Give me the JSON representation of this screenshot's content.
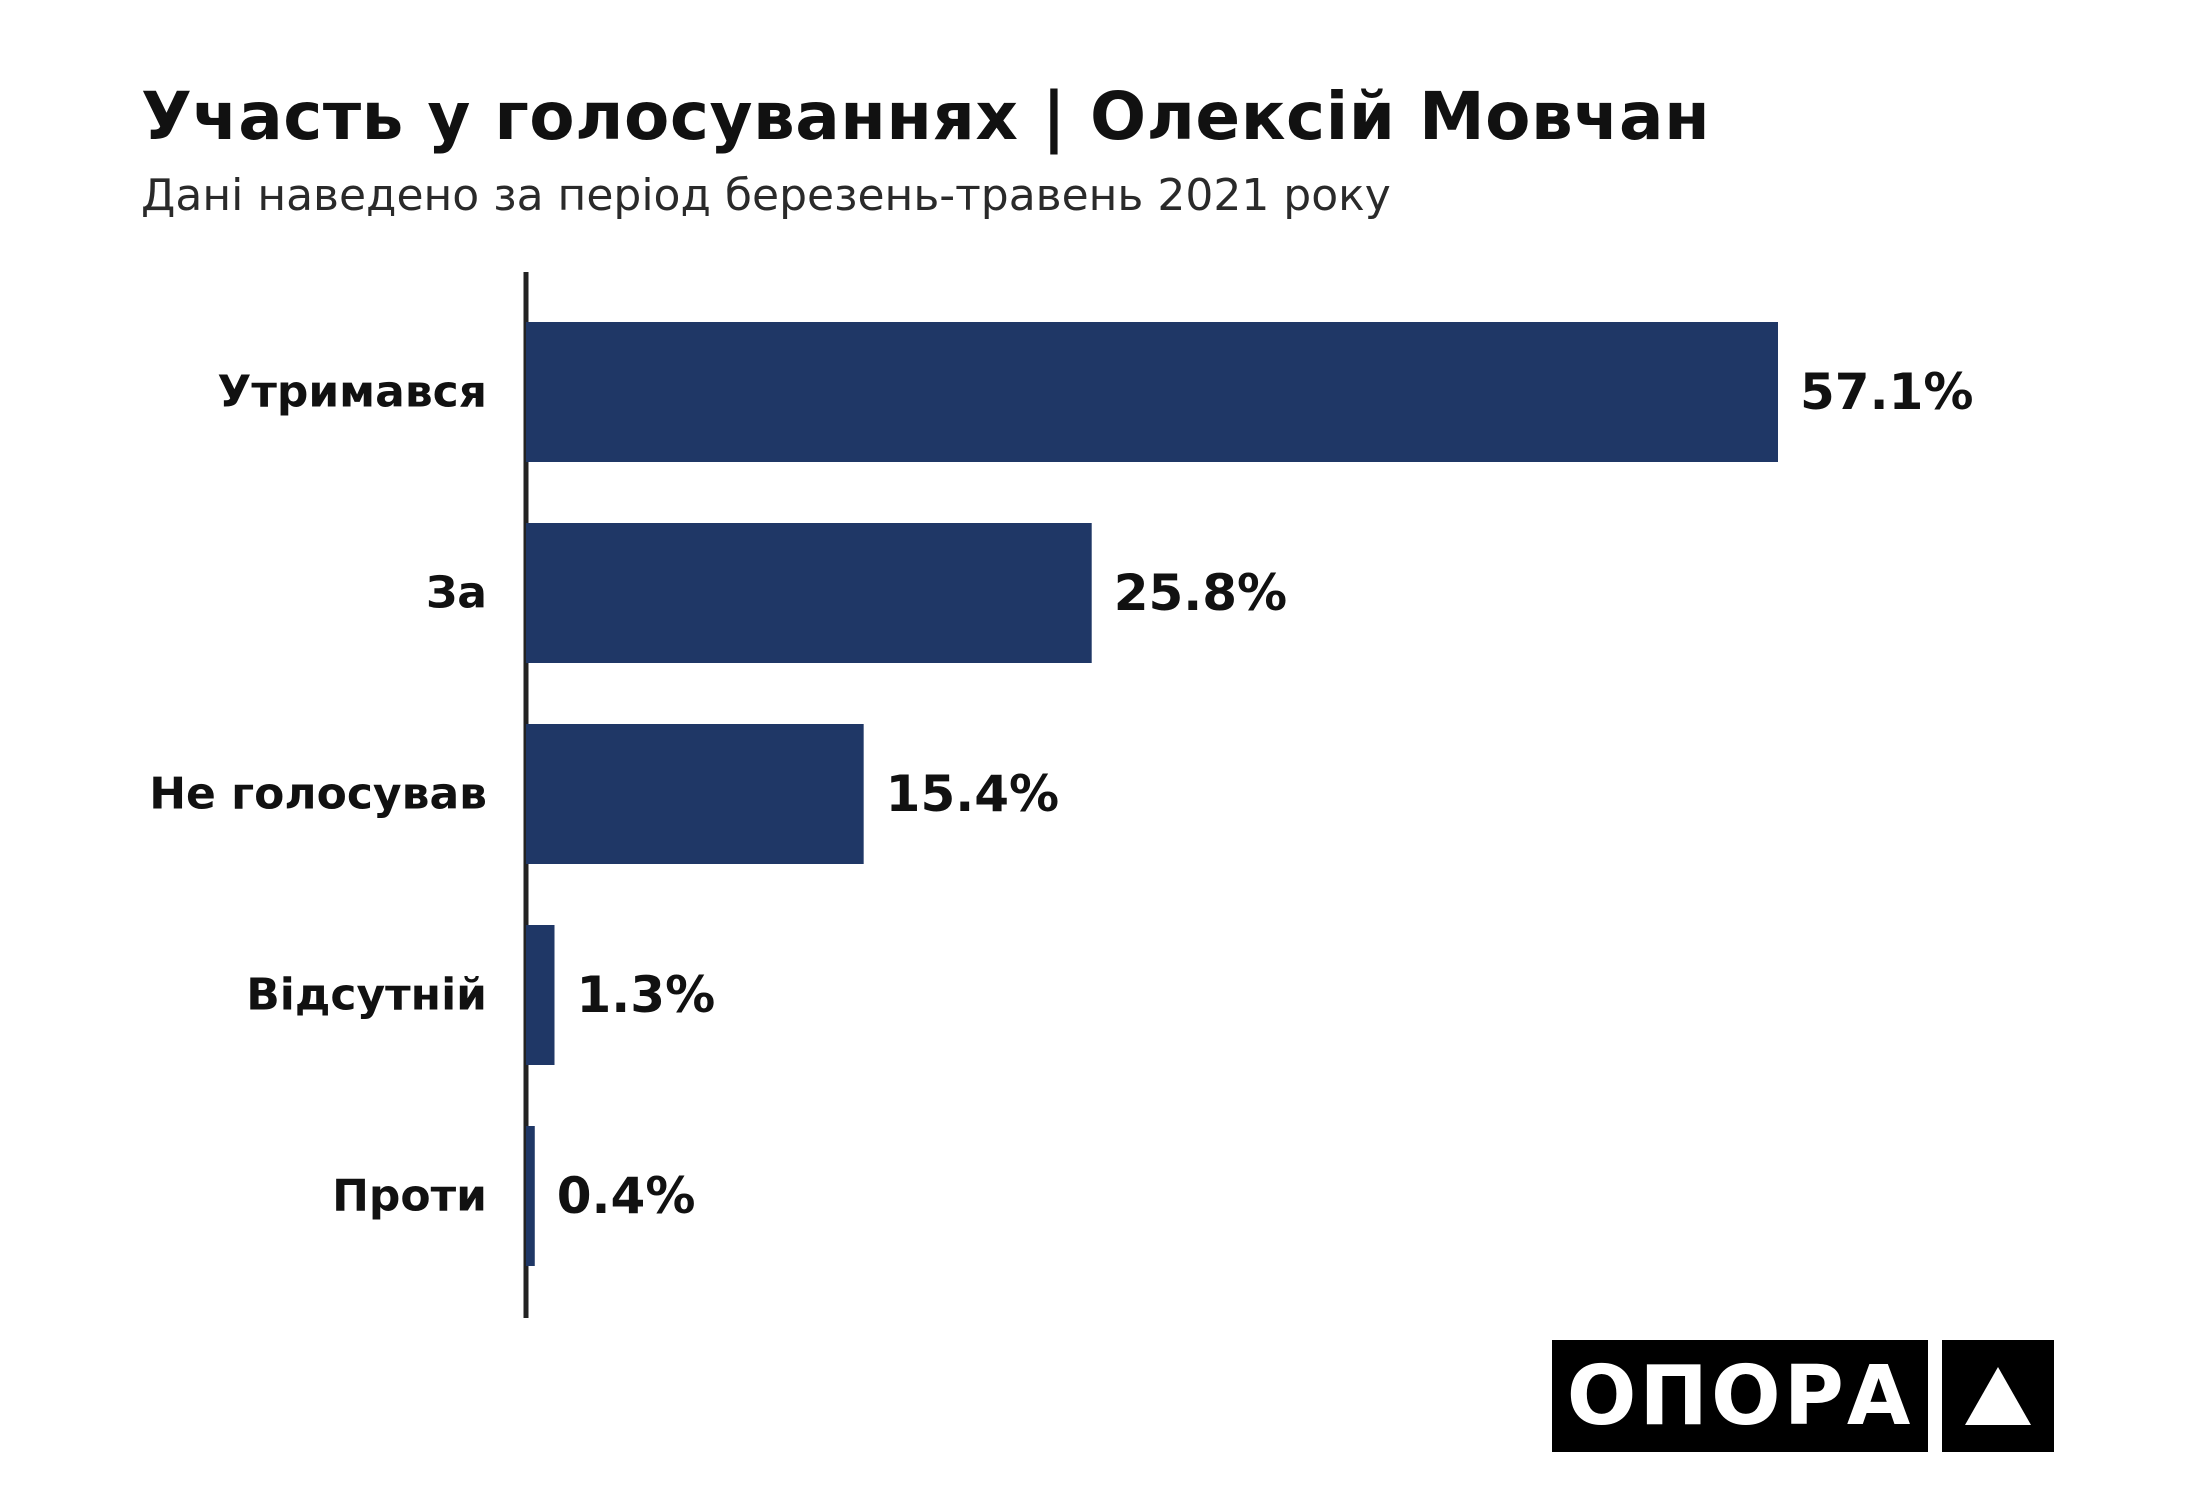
{
  "chart_data": {
    "type": "bar",
    "orientation": "horizontal",
    "title": "Участь у голосуваннях | Олексій Мовчан",
    "subtitle": "Дані наведено за період березень-травень 2021 року",
    "categories": [
      "Утримався",
      "За",
      "Не голосував",
      "Відсутній",
      "Проти"
    ],
    "values": [
      57.1,
      25.8,
      15.4,
      1.3,
      0.4
    ],
    "value_labels": [
      "57.1%",
      "25.8%",
      "15.4%",
      "1.3%",
      "0.4%"
    ],
    "xlim": [
      0,
      57.1
    ],
    "grid": false,
    "bar_color": "#1f3766"
  },
  "logo": {
    "text": "ОПОРА",
    "mark": "triangle-icon"
  }
}
